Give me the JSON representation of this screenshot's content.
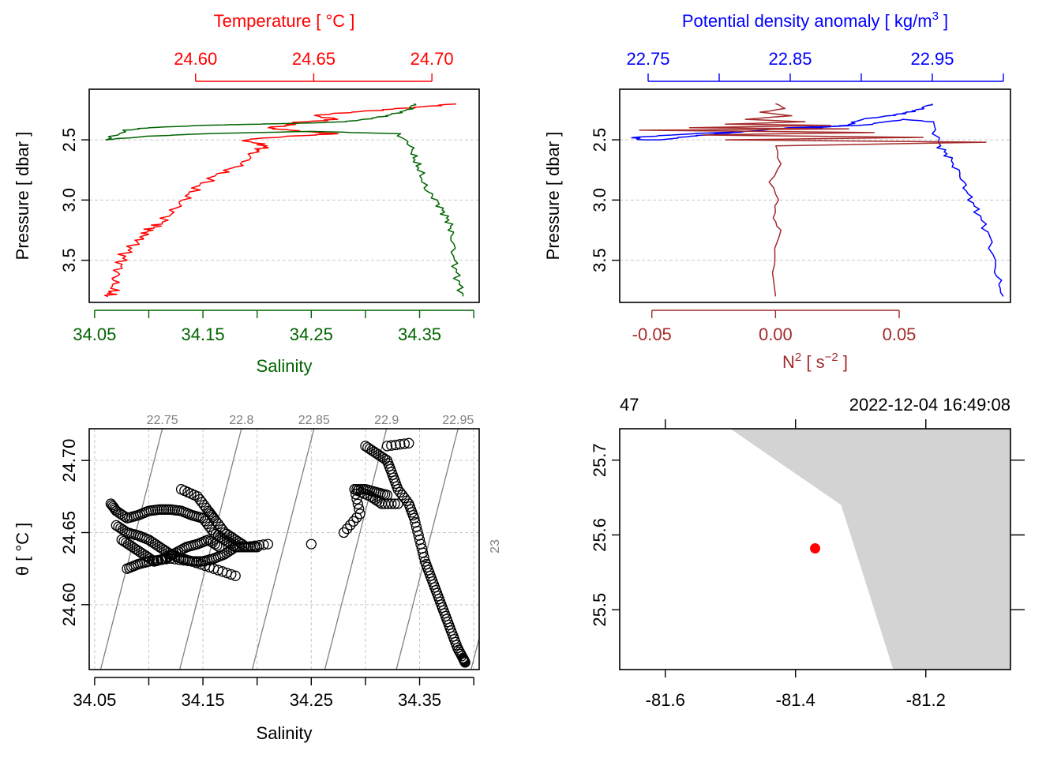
{
  "colors": {
    "temperature": "#ff0000",
    "salinity": "#006400",
    "density": "#0000ff",
    "n2": "#a52a2a",
    "grid": "#c8c8c8",
    "isopycnal": "#808080",
    "land": "#d3d3d3",
    "station": "#ff0000"
  },
  "chart_data": [
    {
      "type": "line",
      "panel": "profile-ts",
      "top_axis": {
        "title": "Temperature [ °C ]",
        "ticks": [
          "24.60",
          "24.65",
          "24.70"
        ],
        "tick_values": [
          24.6,
          24.65,
          24.7
        ],
        "range": [
          24.555,
          24.72
        ]
      },
      "bottom_axis": {
        "title": "Salinity",
        "ticks": [
          "34.05",
          "34.15",
          "34.25",
          "34.35"
        ],
        "tick_values": [
          34.05,
          34.1,
          34.15,
          34.2,
          34.25,
          34.3,
          34.35,
          34.4
        ],
        "range": [
          34.045,
          34.405
        ]
      },
      "y_axis": {
        "title": "Pressure [ dbar ]",
        "ticks": [
          "2.5",
          "3.0",
          "3.5"
        ],
        "tick_values": [
          2.5,
          3.0,
          3.5
        ],
        "range": [
          3.85,
          2.08
        ],
        "reversed": true
      },
      "series": [
        {
          "name": "Temperature",
          "x": [
            24.71,
            24.7,
            24.68,
            24.66,
            24.65,
            24.66,
            24.64,
            24.64,
            24.63,
            24.645,
            24.66,
            24.64,
            24.62,
            24.63,
            24.625,
            24.62,
            24.61,
            24.6,
            24.595,
            24.59,
            24.585,
            24.58,
            24.578,
            24.575,
            24.57,
            24.568,
            24.566,
            24.565,
            24.563
          ],
          "y": [
            2.2,
            2.22,
            2.25,
            2.28,
            2.3,
            2.33,
            2.36,
            2.38,
            2.4,
            2.43,
            2.45,
            2.47,
            2.5,
            2.55,
            2.6,
            2.7,
            2.78,
            2.9,
            3.0,
            3.1,
            3.2,
            3.25,
            3.3,
            3.35,
            3.45,
            3.55,
            3.65,
            3.75,
            3.8
          ]
        },
        {
          "name": "Salinity",
          "x": [
            34.345,
            34.34,
            34.32,
            34.3,
            34.28,
            34.25,
            34.2,
            34.15,
            34.1,
            34.08,
            34.06,
            34.1,
            34.15,
            34.25,
            34.33,
            34.342,
            34.345,
            34.35,
            34.355,
            34.365,
            34.372,
            34.378,
            34.38,
            34.382,
            34.385,
            34.39
          ],
          "y": [
            2.2,
            2.25,
            2.3,
            2.33,
            2.35,
            2.36,
            2.37,
            2.38,
            2.4,
            2.42,
            2.5,
            2.47,
            2.45,
            2.43,
            2.45,
            2.55,
            2.65,
            2.75,
            2.9,
            3.0,
            3.1,
            3.2,
            3.3,
            3.5,
            3.65,
            3.8
          ]
        }
      ]
    },
    {
      "type": "line",
      "panel": "profile-density-n2",
      "top_axis": {
        "title": "Potential density anomaly [ kg/m",
        "title_sup": "3",
        "title_end": " ]",
        "ticks": [
          "22.75",
          "22.85",
          "22.95"
        ],
        "tick_values": [
          22.75,
          22.8,
          22.85,
          22.9,
          22.95,
          23.0
        ],
        "range": [
          22.73,
          23.005
        ]
      },
      "bottom_axis": {
        "title": "N",
        "title_sup": "2",
        "title_mid": " [ s",
        "title_sup2": "−2",
        "title_end": " ]",
        "ticks": [
          "-0.05",
          "0.00",
          "0.05"
        ],
        "tick_values": [
          -0.05,
          0.0,
          0.05
        ],
        "range": [
          -0.063,
          0.095
        ]
      },
      "y_axis": {
        "title": "Pressure [ dbar ]",
        "ticks": [
          "2.5",
          "3.0",
          "3.5"
        ],
        "tick_values": [
          2.5,
          3.0,
          3.5
        ],
        "range": [
          3.85,
          2.08
        ],
        "reversed": true
      },
      "series": [
        {
          "name": "Potential density anomaly",
          "x": [
            22.95,
            22.94,
            22.93,
            22.92,
            22.9,
            22.89,
            22.87,
            22.85,
            22.83,
            22.8,
            22.78,
            22.76,
            22.745,
            22.74,
            22.78,
            22.82,
            22.85,
            22.9,
            22.93,
            22.95,
            22.955,
            22.962,
            22.97,
            22.975,
            22.982,
            22.99,
            22.995,
            23.0
          ],
          "y": [
            2.2,
            2.25,
            2.28,
            2.3,
            2.33,
            2.38,
            2.4,
            2.4,
            2.42,
            2.45,
            2.47,
            2.5,
            2.5,
            2.48,
            2.45,
            2.43,
            2.4,
            2.38,
            2.33,
            2.35,
            2.55,
            2.65,
            2.8,
            2.95,
            3.1,
            3.3,
            3.6,
            3.8
          ]
        },
        {
          "name": "N2",
          "x": [
            0.0,
            0.004,
            -0.006,
            0.006,
            -0.012,
            0.012,
            -0.02,
            0.022,
            -0.035,
            0.03,
            -0.055,
            0.04,
            -0.03,
            0.06,
            -0.02,
            0.085,
            0.0,
            0.002,
            -0.002,
            0.001,
            -0.001,
            0.002,
            0.0,
            -0.001,
            0.0
          ],
          "y": [
            2.2,
            2.24,
            2.27,
            2.3,
            2.33,
            2.35,
            2.37,
            2.38,
            2.4,
            2.41,
            2.42,
            2.44,
            2.46,
            2.48,
            2.5,
            2.52,
            2.55,
            2.7,
            2.85,
            3.0,
            3.15,
            3.25,
            3.4,
            3.6,
            3.8
          ]
        }
      ]
    },
    {
      "type": "scatter",
      "panel": "ts-diagram",
      "x_axis": {
        "title": "Salinity",
        "ticks": [
          "34.05",
          "34.15",
          "34.25",
          "34.35"
        ],
        "tick_values": [
          34.05,
          34.1,
          34.15,
          34.2,
          34.25,
          34.3,
          34.35,
          34.4
        ],
        "range": [
          34.045,
          34.405
        ]
      },
      "y_axis": {
        "title": "θ [ °C ]",
        "ticks": [
          "24.60",
          "24.65",
          "24.70"
        ],
        "tick_values": [
          24.6,
          24.65,
          24.7
        ],
        "range": [
          24.555,
          24.722
        ]
      },
      "isopycnals": [
        "22.75",
        "22.8",
        "22.85",
        "22.9",
        "22.95",
        "23"
      ],
      "isopycnal_values": [
        22.75,
        22.8,
        22.85,
        22.9,
        22.95,
        23.0
      ],
      "points": {
        "S": [
          34.065,
          34.07,
          34.08,
          34.09,
          34.1,
          34.11,
          34.12,
          34.13,
          34.14,
          34.15,
          34.16,
          34.17,
          34.18,
          34.19,
          34.2,
          34.07,
          34.08,
          34.09,
          34.1,
          34.11,
          34.12,
          34.13,
          34.14,
          34.15,
          34.16,
          34.17,
          34.18,
          34.075,
          34.085,
          34.095,
          34.105,
          34.115,
          34.125,
          34.135,
          34.145,
          34.155,
          34.165,
          34.08,
          34.09,
          34.1,
          34.12,
          34.14,
          34.16,
          34.18,
          34.13,
          34.145,
          34.155,
          34.16,
          34.17,
          34.18,
          34.19,
          34.21,
          34.25,
          34.28,
          34.295,
          34.29,
          34.3,
          34.31,
          34.32,
          34.29,
          34.305,
          34.315,
          34.33,
          34.32,
          34.34,
          34.3,
          34.31,
          34.32,
          34.325,
          34.33,
          34.34,
          34.345,
          34.35,
          34.355,
          34.36,
          34.365,
          34.37,
          34.375,
          34.38,
          34.385,
          34.39,
          34.392
        ],
        "T": [
          24.67,
          24.665,
          24.66,
          24.662,
          24.665,
          24.666,
          24.666,
          24.665,
          24.662,
          24.66,
          24.65,
          24.645,
          24.64,
          24.64,
          24.64,
          24.655,
          24.65,
          24.648,
          24.645,
          24.64,
          24.635,
          24.632,
          24.63,
          24.63,
          24.632,
          24.635,
          24.64,
          24.645,
          24.64,
          24.635,
          24.63,
          24.632,
          24.636,
          24.64,
          24.642,
          24.645,
          24.64,
          24.625,
          24.628,
          24.63,
          24.632,
          24.63,
          24.625,
          24.62,
          24.68,
          24.675,
          24.665,
          24.66,
          24.65,
          24.645,
          24.64,
          24.642,
          24.642,
          24.65,
          24.663,
          24.68,
          24.68,
          24.678,
          24.676,
          24.68,
          24.675,
          24.67,
          24.67,
          24.71,
          24.712,
          24.71,
          24.705,
          24.7,
          24.69,
          24.68,
          24.67,
          24.66,
          24.645,
          24.63,
          24.62,
          24.61,
          24.6,
          24.59,
          24.58,
          24.57,
          24.563,
          24.56
        ]
      }
    },
    {
      "type": "map",
      "panel": "station-map",
      "x_axis": {
        "ticks": [
          "-81.6",
          "-81.4",
          "-81.2"
        ],
        "tick_values": [
          -81.6,
          -81.4,
          -81.2
        ],
        "range": [
          -81.67,
          -81.07
        ]
      },
      "y_axis": {
        "ticks": [
          "25.5",
          "25.6",
          "25.7"
        ],
        "tick_values": [
          25.5,
          25.6,
          25.7
        ],
        "range": [
          25.42,
          25.742
        ]
      },
      "station_label": "47",
      "datetime": "2022-12-04 16:49:08",
      "station": {
        "lon": -81.37,
        "lat": 25.582
      },
      "coastline": {
        "lon": [
          -81.5,
          -81.07,
          -81.07,
          -81.25,
          -81.33,
          -81.5
        ],
        "lat": [
          25.742,
          25.742,
          25.42,
          25.42,
          25.64,
          25.742
        ]
      }
    }
  ]
}
